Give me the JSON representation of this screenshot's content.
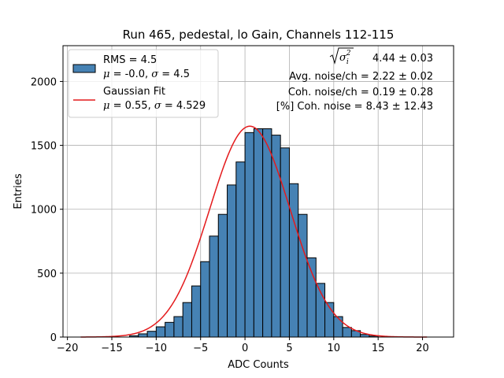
{
  "chart_data": {
    "type": "bar",
    "title": "Run 465, pedestal, lo Gain, Channels 112-115",
    "xlabel": "ADC Counts",
    "ylabel": "Entries",
    "xlim": [
      -20.5,
      23.5
    ],
    "ylim": [
      0,
      2280
    ],
    "xticks": [
      -20,
      -15,
      -10,
      -5,
      0,
      5,
      10,
      15,
      20
    ],
    "yticks": [
      0,
      500,
      1000,
      1500,
      2000
    ],
    "grid": true,
    "legend_position": "top-left",
    "bin_width": 1,
    "bin_starts": [
      -13,
      -12,
      -11,
      -10,
      -9,
      -8,
      -7,
      -6,
      -5,
      -4,
      -3,
      -2,
      -1,
      0,
      1,
      2,
      3,
      4,
      5,
      6,
      7,
      8,
      9,
      10,
      11,
      12,
      13,
      14
    ],
    "values": [
      10,
      25,
      45,
      80,
      115,
      160,
      270,
      400,
      590,
      790,
      960,
      1190,
      1370,
      1600,
      1630,
      1630,
      1580,
      1480,
      1200,
      960,
      620,
      420,
      270,
      160,
      75,
      50,
      20,
      8
    ],
    "histogram": {
      "name": "RMS = 4.5",
      "stats": {
        "mu": "-0.0",
        "sigma": "4.5"
      },
      "color": "#4682b4",
      "edge_color": "#000000"
    },
    "fit": {
      "name": "Gaussian Fit",
      "mu": 0.55,
      "sigma": 4.529,
      "amplitude": 1650,
      "x_range": [
        -18.5,
        20.5
      ],
      "color": "#e41a1c"
    },
    "annotations": {
      "sigma_value": "4.44 ± 0.03",
      "avg_noise": "Avg. noise/ch = 2.22 ± 0.02",
      "coh_noise": "Coh. noise/ch = 0.19 ± 0.28",
      "pct_coh_noise": "[%] Coh. noise = 8.43 ± 12.43"
    },
    "legend": {
      "hist_label": "RMS = 4.5",
      "hist_stats_mu_value": "= -0.0,",
      "hist_stats_sigma_value": "= 4.5",
      "fit_label": "Gaussian Fit",
      "fit_stats_mu_value": "= 0.55,",
      "fit_stats_sigma_value": "= 4.529"
    }
  }
}
